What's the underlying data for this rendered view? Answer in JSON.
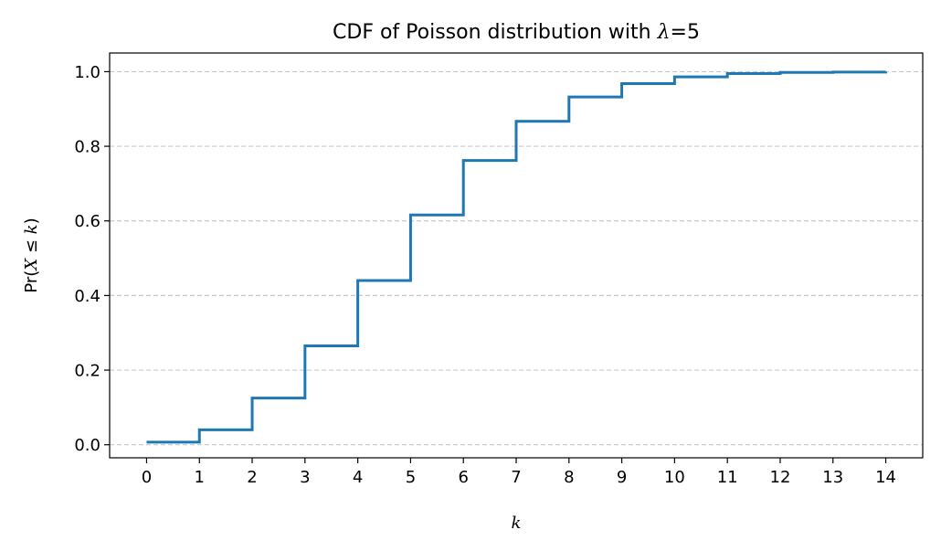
{
  "chart_data": {
    "type": "line",
    "step": "post",
    "title_text": "CDF of Poisson distribution with ",
    "title_symbol": "λ",
    "title_suffix": "=5",
    "xlabel": "k",
    "ylabel_prefix": "Pr(",
    "ylabel_var": "X",
    "ylabel_op": " ≤ ",
    "ylabel_k": "k",
    "ylabel_suffix": ")",
    "xlim": [
      -0.7,
      14.7
    ],
    "ylim": [
      -0.035,
      1.05
    ],
    "x_ticks": [
      0,
      1,
      2,
      3,
      4,
      5,
      6,
      7,
      8,
      9,
      10,
      11,
      12,
      13,
      14
    ],
    "x_tick_labels": [
      "0",
      "1",
      "2",
      "3",
      "4",
      "5",
      "6",
      "7",
      "8",
      "9",
      "10",
      "11",
      "12",
      "13",
      "14"
    ],
    "y_ticks": [
      0.0,
      0.2,
      0.4,
      0.6,
      0.8,
      1.0
    ],
    "y_tick_labels": [
      "0.0",
      "0.2",
      "0.4",
      "0.6",
      "0.8",
      "1.0"
    ],
    "grid": "y-dashed",
    "series": [
      {
        "color": "#1f77b4",
        "x": [
          0,
          1,
          2,
          3,
          4,
          5,
          6,
          7,
          8,
          9,
          10,
          11,
          12,
          13,
          14
        ],
        "y": [
          0.007,
          0.04,
          0.125,
          0.265,
          0.44,
          0.616,
          0.762,
          0.867,
          0.932,
          0.968,
          0.986,
          0.995,
          0.998,
          0.999,
          1.0
        ]
      }
    ]
  }
}
